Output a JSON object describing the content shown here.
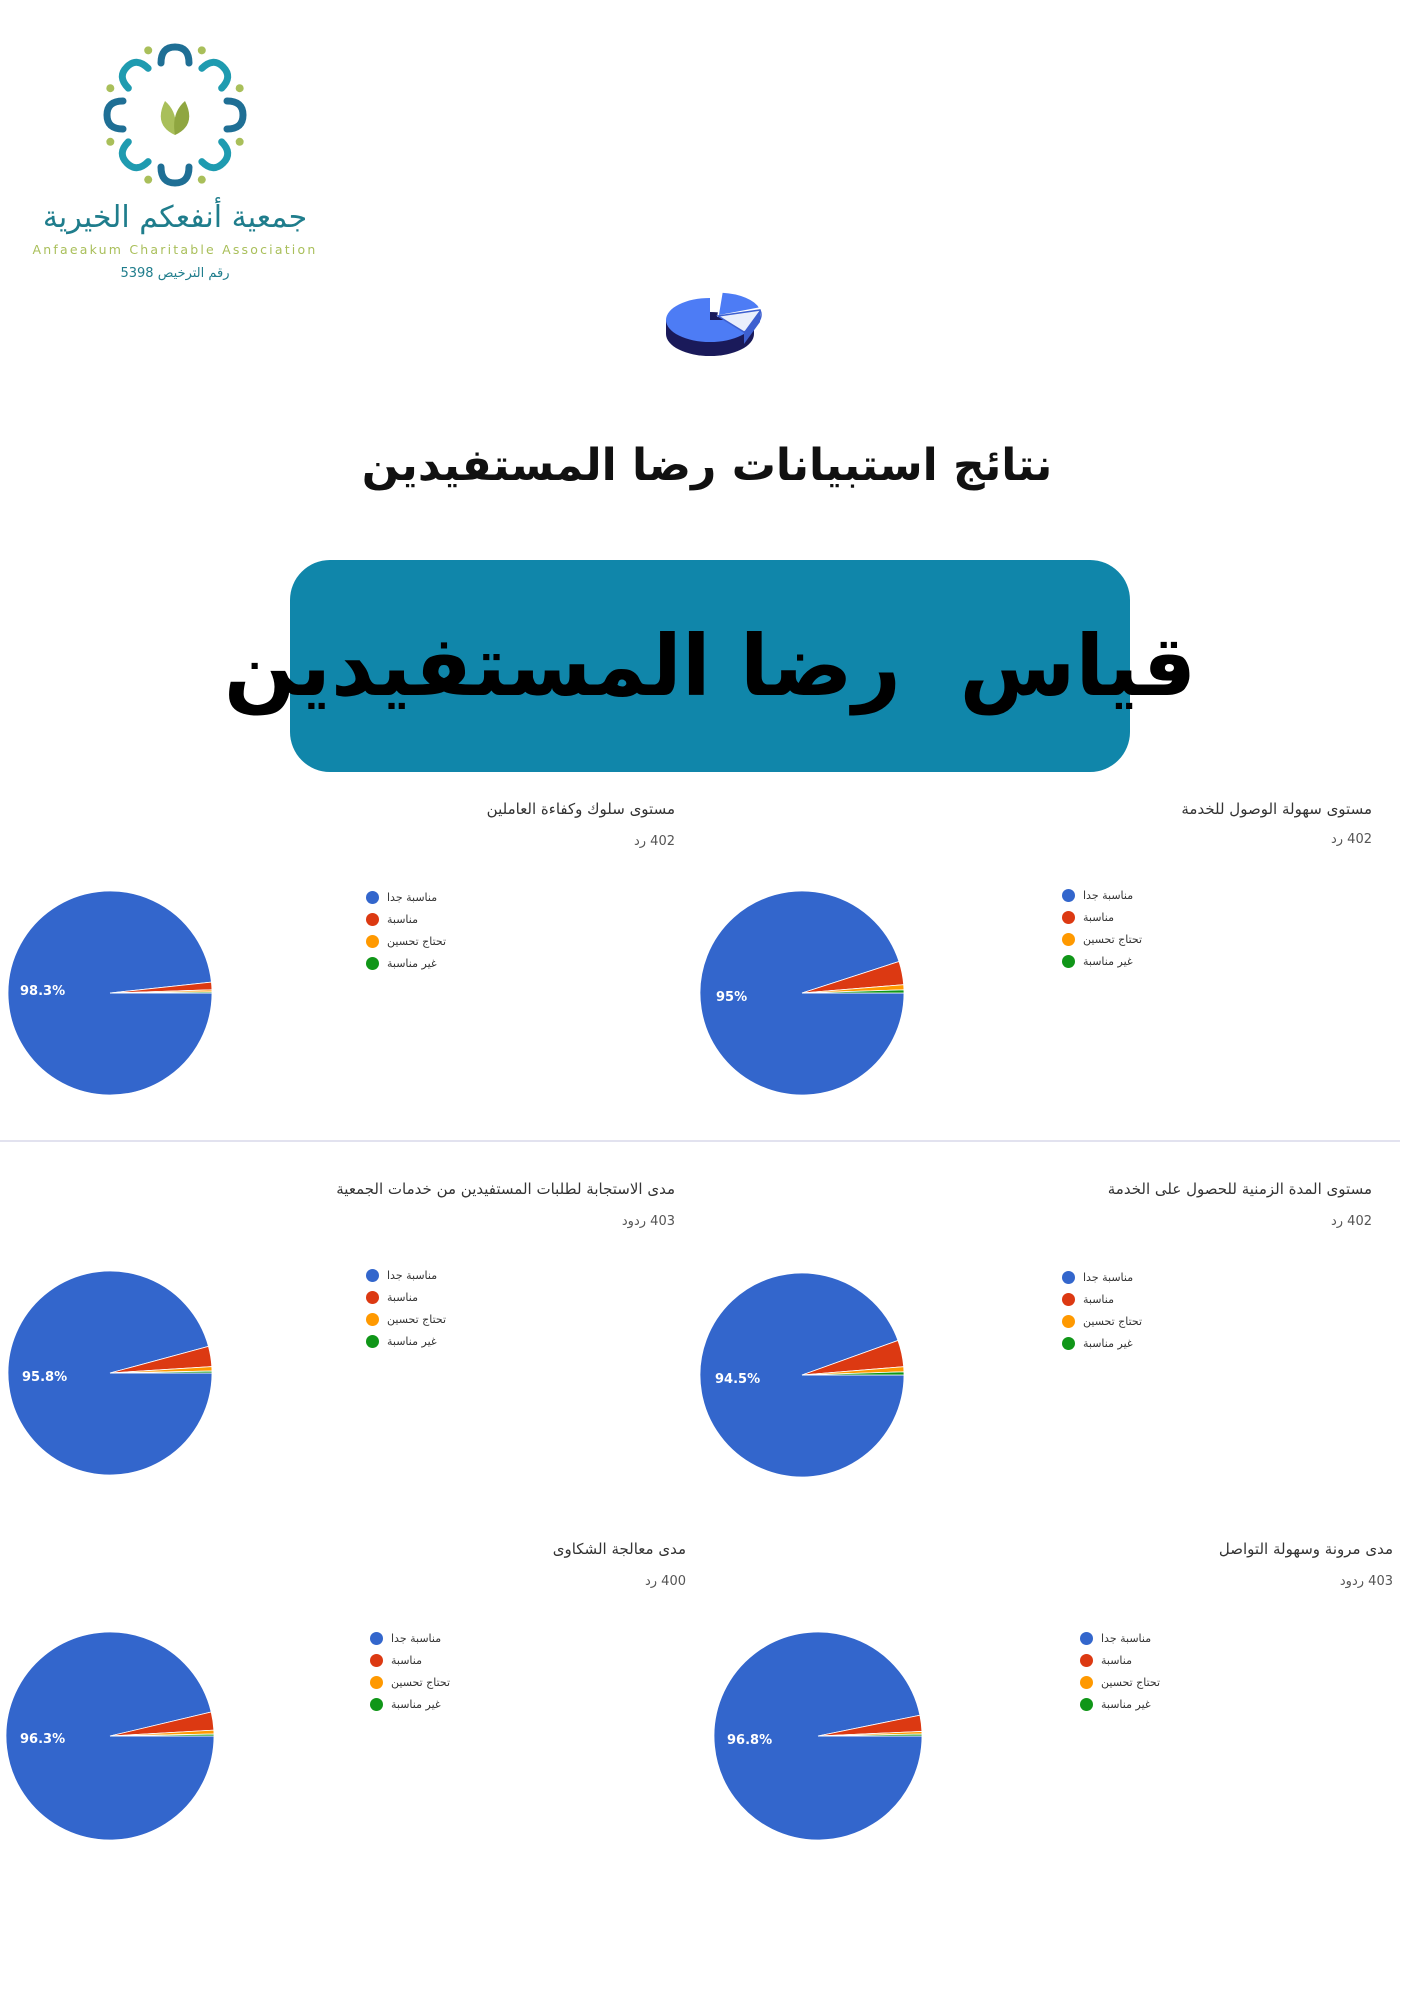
{
  "header": {
    "org_name_ar": "جمعية أنفعكم الخيرية",
    "org_name_en": "Anfaeakum Charitable Association",
    "license": "رقم الترخيص 5398",
    "main_title": "نتائج استبيانات رضا المستفيدين",
    "banner_text": "قياس  رضا المستفيدين"
  },
  "colors": {
    "teal": "#1086aa",
    "very_suitable": "#3366cc",
    "suitable": "#dc3912",
    "needs_improvement": "#ff9900",
    "not_suitable": "#109618"
  },
  "chart_data": [
    {
      "type": "pie",
      "title": "مستوى سهولة الوصول للخدمة",
      "responses": "402 رد",
      "categories": [
        "مناسبة جدا",
        "مناسبة",
        "تحتاج تحسين",
        "غير مناسبة"
      ],
      "values": [
        95,
        3.7,
        0.8,
        0.5
      ],
      "data_label": "95%"
    },
    {
      "type": "pie",
      "title": "مستوى سلوك وكفاءة العاملين",
      "responses": "402 رد",
      "categories": [
        "مناسبة جدا",
        "مناسبة",
        "تحتاج تحسين",
        "غير مناسبة"
      ],
      "values": [
        98.3,
        1.2,
        0.3,
        0.2
      ],
      "data_label": "98.3%"
    },
    {
      "type": "pie",
      "title": "مستوى المدة الزمنية للحصول على الخدمة",
      "responses": "402 رد",
      "categories": [
        "مناسبة جدا",
        "مناسبة",
        "تحتاج تحسين",
        "غير مناسبة"
      ],
      "values": [
        94.5,
        4.2,
        0.8,
        0.5
      ],
      "data_label": "94.5%"
    },
    {
      "type": "pie",
      "title": "مدى الاستجابة لطلبات المستفيدين من خدمات الجمعية",
      "responses": "403 ردود",
      "categories": [
        "مناسبة جدا",
        "مناسبة",
        "تحتاج تحسين",
        "غير مناسبة"
      ],
      "values": [
        95.8,
        3.2,
        0.7,
        0.3
      ],
      "data_label": "95.8%"
    },
    {
      "type": "pie",
      "title": "مدى مرونة وسهولة التواصل",
      "responses": "403 ردود",
      "categories": [
        "مناسبة جدا",
        "مناسبة",
        "تحتاج تحسين",
        "غير مناسبة"
      ],
      "values": [
        96.8,
        2.5,
        0.4,
        0.3
      ],
      "data_label": "96.8%"
    },
    {
      "type": "pie",
      "title": "مدى معالجة الشكاوى",
      "responses": "400 رد",
      "categories": [
        "مناسبة جدا",
        "مناسبة",
        "تحتاج تحسين",
        "غير مناسبة"
      ],
      "values": [
        96.3,
        2.8,
        0.6,
        0.3
      ],
      "data_label": "96.3%"
    }
  ]
}
